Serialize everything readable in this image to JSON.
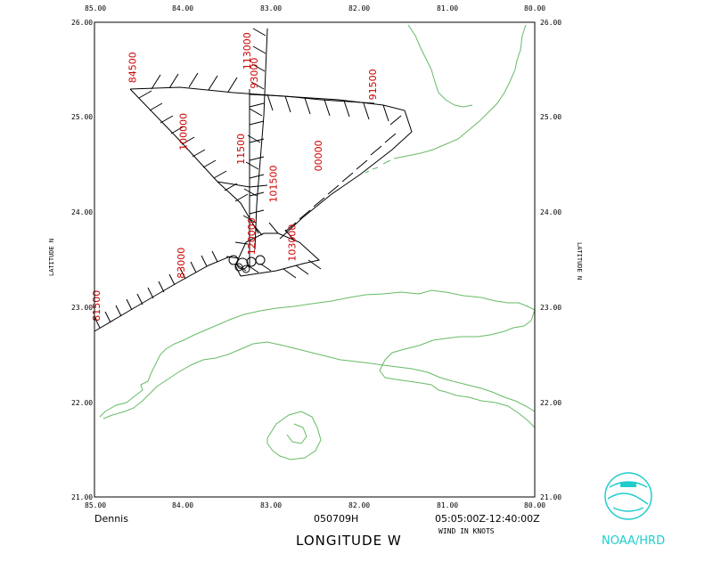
{
  "map": {
    "lon_ticks": [
      "85.00",
      "84.00",
      "83.00",
      "82.00",
      "81.00",
      "80.00"
    ],
    "lat_ticks": [
      "21.00",
      "22.00",
      "23.00",
      "24.00",
      "25.00",
      "26.00"
    ],
    "lat_label": "LATITUDE   N",
    "lon_label": "LONGITUDE   W",
    "storm": "Dennis",
    "date": "050709H",
    "time_range": "05:05:00Z-12:40:00Z",
    "wind_note": "WIND IN KNOTS",
    "logo_text": "NOAA/HRD",
    "colors": {
      "coast": "#66bb66",
      "time_labels": "#cc0000",
      "logo": "#22cccc"
    }
  },
  "time_labels": [
    {
      "text": "81500",
      "lon": 84.94,
      "lat": 22.85
    },
    {
      "text": "83000",
      "lon": 83.98,
      "lat": 23.3
    },
    {
      "text": "84500",
      "lon": 84.53,
      "lat": 25.36
    },
    {
      "text": "100000",
      "lon": 83.95,
      "lat": 24.65
    },
    {
      "text": "113000",
      "lon": 83.23,
      "lat": 25.5
    },
    {
      "text": "93000",
      "lon": 83.15,
      "lat": 25.3
    },
    {
      "text": "91500",
      "lon": 81.8,
      "lat": 25.18
    },
    {
      "text": "00000",
      "lon": 82.42,
      "lat": 24.43
    },
    {
      "text": "11500",
      "lon": 83.3,
      "lat": 24.5
    },
    {
      "text": "101500",
      "lon": 82.93,
      "lat": 24.1
    },
    {
      "text": "103000",
      "lon": 82.72,
      "lat": 23.48
    },
    {
      "text": "120000",
      "lon": 83.18,
      "lat": 23.55
    }
  ]
}
